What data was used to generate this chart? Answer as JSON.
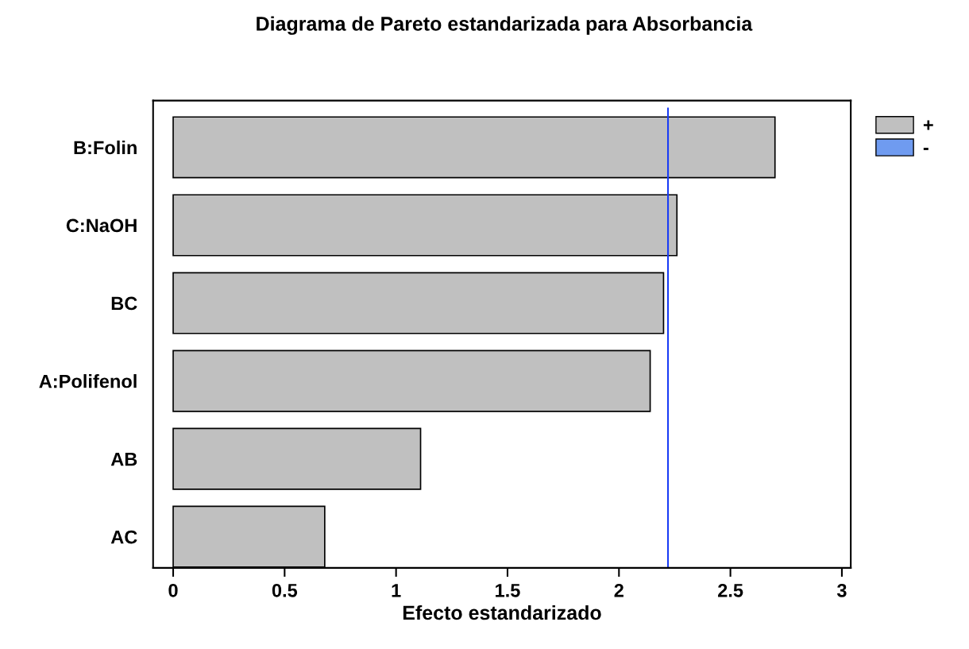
{
  "chart_data": {
    "type": "bar",
    "orientation": "horizontal",
    "title": "Diagrama de Pareto estandarizada para Absorbancia",
    "xlabel": "Efecto estandarizado",
    "categories": [
      "B:Folin",
      "C:NaOH",
      "BC",
      "A:Polifenol",
      "AB",
      "AC"
    ],
    "series": [
      {
        "name": "+",
        "color": "#c0c0c0",
        "values": [
          2.7,
          2.26,
          2.2,
          2.14,
          1.11,
          0.68
        ]
      },
      {
        "name": "-",
        "color": "#6f9bf0",
        "values": [
          null,
          null,
          null,
          null,
          null,
          null
        ]
      }
    ],
    "ref_lines": [
      {
        "axis": "x",
        "value": 2.22,
        "color": "#1a3cf5"
      }
    ],
    "xlim": [
      -0.09,
      3.04
    ],
    "xticks": [
      0,
      0.5,
      1,
      1.5,
      2,
      2.5,
      3
    ],
    "grid": false,
    "legend": "top right"
  }
}
